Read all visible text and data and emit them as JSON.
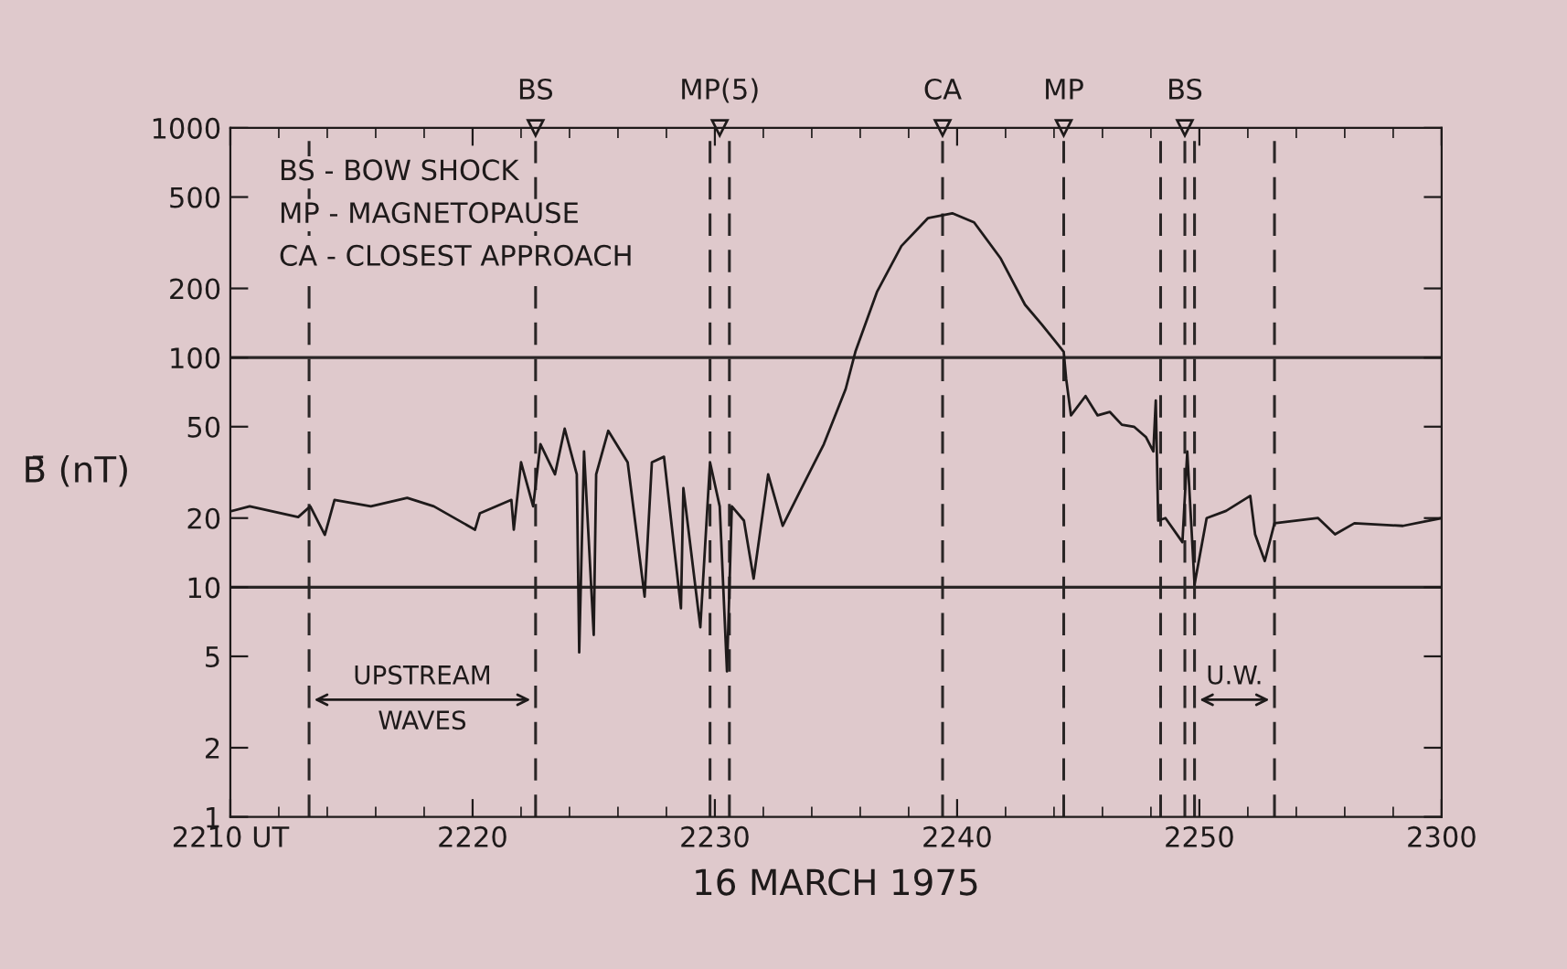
{
  "chart_data": {
    "type": "line",
    "xlabel": "16 MARCH 1975",
    "ylabel": "B̄ (nT)",
    "x": [
      "1975-03-16T22:10:00",
      "1975-03-16T22:10:48",
      "1975-03-16T22:12:48",
      "1975-03-16T22:13:18",
      "1975-03-16T22:13:54",
      "1975-03-16T22:14:18",
      "1975-03-16T22:15:48",
      "1975-03-16T22:17:18",
      "1975-03-16T22:18:24",
      "1975-03-16T22:20:06",
      "1975-03-16T22:20:18",
      "1975-03-16T22:21:36",
      "1975-03-16T22:21:42",
      "1975-03-16T22:22:00",
      "1975-03-16T22:22:30",
      "1975-03-16T22:22:48",
      "1975-03-16T22:23:24",
      "1975-03-16T22:23:48",
      "1975-03-16T22:24:18",
      "1975-03-16T22:24:24",
      "1975-03-16T22:24:36",
      "1975-03-16T22:25:00",
      "1975-03-16T22:25:06",
      "1975-03-16T22:25:36",
      "1975-03-16T22:26:24",
      "1975-03-16T22:27:06",
      "1975-03-16T22:27:24",
      "1975-03-16T22:27:54",
      "1975-03-16T22:28:36",
      "1975-03-16T22:28:42",
      "1975-03-16T22:29:24",
      "1975-03-16T22:29:48",
      "1975-03-16T22:30:12",
      "1975-03-16T22:30:30",
      "1975-03-16T22:30:42",
      "1975-03-16T22:31:12",
      "1975-03-16T22:31:36",
      "1975-03-16T22:32:12",
      "1975-03-16T22:32:48",
      "1975-03-16T22:33:30",
      "1975-03-16T22:34:30",
      "1975-03-16T22:35:24",
      "1975-03-16T22:35:48",
      "1975-03-16T22:36:42",
      "1975-03-16T22:37:42",
      "1975-03-16T22:38:48",
      "1975-03-16T22:39:48",
      "1975-03-16T22:40:42",
      "1975-03-16T22:41:48",
      "1975-03-16T22:42:48",
      "1975-03-16T22:43:30",
      "1975-03-16T22:44:06",
      "1975-03-16T22:44:24",
      "1975-03-16T22:44:30",
      "1975-03-16T22:44:42",
      "1975-03-16T22:45:18",
      "1975-03-16T22:45:48",
      "1975-03-16T22:46:18",
      "1975-03-16T22:46:48",
      "1975-03-16T22:47:18",
      "1975-03-16T22:47:48",
      "1975-03-16T22:48:06",
      "1975-03-16T22:48:12",
      "1975-03-16T22:48:18",
      "1975-03-16T22:48:36",
      "1975-03-16T22:49:18",
      "1975-03-16T22:49:30",
      "1975-03-16T22:49:48",
      "1975-03-16T22:50:18",
      "1975-03-16T22:51:06",
      "1975-03-16T22:52:06",
      "1975-03-16T22:52:18",
      "1975-03-16T22:52:42",
      "1975-03-16T22:53:06",
      "1975-03-16T22:54:54",
      "1975-03-16T22:55:36",
      "1975-03-16T22:56:24",
      "1975-03-16T22:58:24",
      "1975-03-16T23:00:00"
    ],
    "series": [
      {
        "color": "#1e1a1a",
        "values": [
          21.4,
          22.5,
          20.2,
          22.5,
          16.9,
          24,
          22.5,
          24.5,
          22.5,
          17.8,
          21,
          24,
          17.8,
          35,
          22.5,
          42,
          31,
          49,
          31,
          5.2,
          39,
          6.2,
          31,
          48,
          35,
          9.1,
          35,
          37,
          8.1,
          27,
          6.7,
          35,
          22.5,
          4.3,
          22.5,
          19.5,
          10.9,
          31,
          18.5,
          26,
          42,
          73,
          106,
          194,
          306,
          405,
          425,
          388,
          270,
          170,
          139,
          116,
          106,
          81,
          56,
          68,
          56,
          58,
          51,
          50,
          45,
          39,
          65,
          19.5,
          20,
          15.7,
          39,
          10.3,
          20,
          21.5,
          25,
          17,
          13,
          19,
          20,
          17,
          19,
          18.5,
          20
        ]
      }
    ],
    "xlim": [
      "1975-03-16T22:10:00",
      "1975-03-16T23:00:00"
    ],
    "xticks": [
      {
        "value": "1975-03-16T22:10",
        "label": "2210 UT"
      },
      {
        "value": "1975-03-16T22:20",
        "label": "2220"
      },
      {
        "value": "1975-03-16T22:30",
        "label": "2230"
      },
      {
        "value": "1975-03-16T22:40",
        "label": "2240"
      },
      {
        "value": "1975-03-16T22:50",
        "label": "2250"
      },
      {
        "value": "1975-03-16T23:00",
        "label": "2300"
      }
    ],
    "log": true,
    "ylim": [
      1,
      1000
    ],
    "yticks": [
      1,
      2,
      5,
      10,
      20,
      50,
      100,
      200,
      500,
      1000
    ],
    "ref_lines": [
      {
        "axis": "y",
        "value": 10,
        "color": "#2a2626",
        "line_style": "solid"
      },
      {
        "axis": "y",
        "value": 100,
        "color": "#2a2626",
        "line_style": "solid"
      },
      {
        "axis": "x",
        "value": "1975-03-16T22:13:15",
        "color": "#2a2626",
        "line_style": "dashed"
      },
      {
        "axis": "x",
        "value": "1975-03-16T22:22:36",
        "color": "#2a2626",
        "line_style": "dashed"
      },
      {
        "axis": "x",
        "value": "1975-03-16T22:29:48",
        "color": "#2a2626",
        "line_style": "dashed"
      },
      {
        "axis": "x",
        "value": "1975-03-16T22:30:36",
        "color": "#2a2626",
        "line_style": "dashed"
      },
      {
        "axis": "x",
        "value": "1975-03-16T22:39:24",
        "color": "#2a2626",
        "line_style": "dashed"
      },
      {
        "axis": "x",
        "value": "1975-03-16T22:44:24",
        "color": "#2a2626",
        "line_style": "dashed"
      },
      {
        "axis": "x",
        "value": "1975-03-16T22:48:24",
        "color": "#2a2626",
        "line_style": "dashed"
      },
      {
        "axis": "x",
        "value": "1975-03-16T22:49:24",
        "color": "#2a2626",
        "line_style": "dashed"
      },
      {
        "axis": "x",
        "value": "1975-03-16T22:49:48",
        "color": "#2a2626",
        "line_style": "dashed"
      },
      {
        "axis": "x",
        "value": "1975-03-16T22:53:06",
        "color": "#2a2626",
        "line_style": "dashed"
      }
    ],
    "annotations": [
      "BS - BOW SHOCK",
      "MP - MAGNETOPAUSE",
      "CA - CLOSEST APPROACH",
      "UPSTREAM\nWAVES",
      "U.W.",
      {
        "text": "BS",
        "x": "1975-03-16T22:22:36",
        "y": 1000
      },
      {
        "text": "MP(5)",
        "x": "1975-03-16T22:30:12",
        "y": 1000
      },
      {
        "text": "CA",
        "x": "1975-03-16T22:39:24",
        "y": 1000
      },
      {
        "text": "MP",
        "x": "1975-03-16T22:44:24",
        "y": 1000
      },
      {
        "text": "BS",
        "x": "1975-03-16T22:49:24",
        "y": 1000
      }
    ],
    "grid": false,
    "line_style": "solid",
    "marker": "none"
  }
}
